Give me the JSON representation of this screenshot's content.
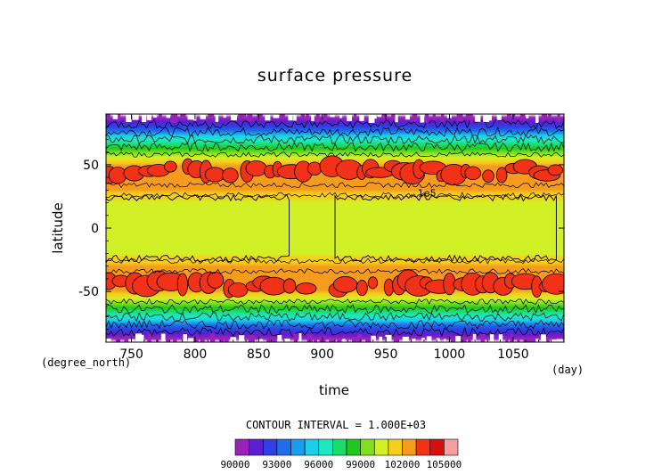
{
  "chart_data": {
    "type": "heatmap",
    "title": "surface pressure",
    "xlabel": "time",
    "ylabel": "latitude",
    "x_unit": "(day)",
    "y_unit": "(degree_north)",
    "x_ticks": [
      "750",
      "800",
      "850",
      "900",
      "950",
      "1000",
      "1050"
    ],
    "x_tick_values": [
      750,
      800,
      850,
      900,
      950,
      1000,
      1050
    ],
    "y_ticks": [
      "50",
      "0",
      "-50"
    ],
    "y_tick_values": [
      50,
      0,
      -50
    ],
    "xlim": [
      730,
      1090
    ],
    "ylim": [
      -90,
      90
    ],
    "contour_label": "1e5",
    "contour_label_pos": [
      975,
      25
    ],
    "contour_interval_text": "CONTOUR INTERVAL = 1.000E+03",
    "colorbar": {
      "levels": [
        90000,
        91000,
        92000,
        93000,
        94000,
        95000,
        96000,
        97000,
        98000,
        99000,
        100000,
        101000,
        102000,
        103000,
        104000,
        105000
      ],
      "colors": [
        "#9a22b8",
        "#5b1fd1",
        "#2f3fe4",
        "#1f6fea",
        "#1a9cf0",
        "#19d0ea",
        "#1ee8c0",
        "#18dd6a",
        "#20c81e",
        "#7fe01e",
        "#d2f026",
        "#f5cf1d",
        "#f59b1d",
        "#f23218",
        "#d90f0f",
        "#f5a0a0"
      ],
      "tick_labels": [
        "90000",
        "93000",
        "96000",
        "99000",
        "102000",
        "105000"
      ]
    },
    "grid": false
  }
}
